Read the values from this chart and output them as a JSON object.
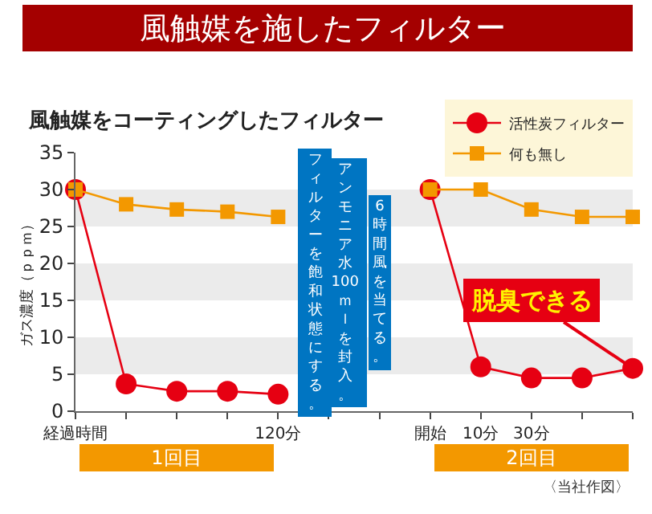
{
  "chart_data": {
    "type": "line",
    "title": "風触媒を施したフィルター",
    "subtitle": "風触媒をコーティングしたフィルター",
    "ylabel": "ガス濃度（ｐｐｍ）",
    "categories": [
      "経過時間",
      null,
      null,
      null,
      "120分",
      null,
      null,
      "開始",
      "10分",
      "30分",
      null,
      null
    ],
    "series": [
      {
        "name": "活性炭フィルター",
        "color": "#e60012",
        "marker": "circle",
        "values": [
          30,
          3.7,
          2.7,
          2.7,
          2.3,
          null,
          null,
          30,
          6,
          4.5,
          4.5,
          5.8
        ]
      },
      {
        "name": "何も無し",
        "color": "#f39800",
        "marker": "square",
        "values": [
          30,
          28,
          27.3,
          27,
          26.3,
          null,
          null,
          30,
          30,
          27.3,
          26.3,
          26.3
        ]
      }
    ],
    "ylim": [
      0,
      35
    ],
    "yticks": [
      0,
      5,
      10,
      15,
      20,
      25,
      30,
      35
    ],
    "grid": false,
    "legend": "top right",
    "bands": [
      {
        "axis": "y",
        "from": 5,
        "to": 10,
        "color": "#ebebeb"
      },
      {
        "axis": "y",
        "from": 15,
        "to": 20,
        "color": "#ebebeb"
      },
      {
        "axis": "y",
        "from": 25,
        "to": 30,
        "color": "#ebebeb"
      }
    ],
    "annotations": [
      "アンモニア水100ｍｌを封入。",
      "フィルターを飽和状態にする。",
      "6時間風を当てる。",
      {
        "text": "脱臭できる",
        "y": 5.8
      },
      "1回目",
      "2回目",
      "〈当社作図〉"
    ]
  }
}
